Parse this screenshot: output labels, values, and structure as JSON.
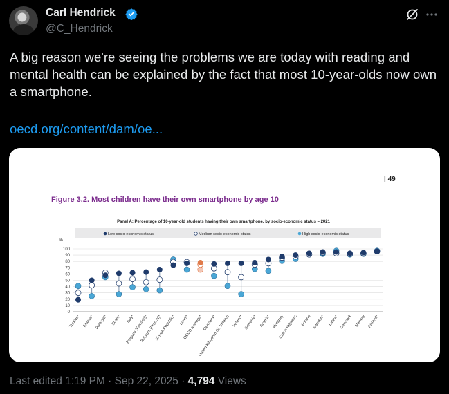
{
  "author": {
    "name": "Carl Hendrick",
    "handle": "@C_Hendrick"
  },
  "tweet": {
    "text": "A big reason we're seeing the problems we are today with reading and mental health can be explained by the fact that most 10-year-olds now own a smartphone.",
    "link": "oecd.org/content/dam/oe..."
  },
  "icons": {
    "verified": "verified-badge-icon",
    "grok": "grok-icon",
    "more": "more-options-icon"
  },
  "colors": {
    "accent": "#1d9bf0",
    "figure_title": "#7a2a8c",
    "low": "#1f3b6b",
    "medium": "#ffffff",
    "high": "#4aa7d6",
    "oecd_high": "#f3c6b5",
    "oecd_outline": "#e07a4a"
  },
  "figure": {
    "page_number": "| 49",
    "title": "Figure 3.2. Most children have their own smartphone by age 10",
    "panel_title": "Panel A: Percentage of 10-year-old students having their own smartphone, by socio-economic status – 2021",
    "legend": [
      "Low socio-economic status",
      "Medium socio-economic status",
      "High socio-economic status"
    ]
  },
  "chart_data": {
    "type": "scatter",
    "ylabel": "%",
    "ylim": [
      0,
      100
    ],
    "yticks": [
      0,
      10,
      20,
      30,
      40,
      50,
      60,
      70,
      80,
      90,
      100
    ],
    "legend_position": "top",
    "categories": [
      "Türkiye*",
      "France*",
      "Portugal*",
      "Spain*",
      "Italy*",
      "Belgium (Flemish)*",
      "Belgium (French)*",
      "Slovak Republic*",
      "Israel*",
      "OECD average*",
      "Germany*",
      "United Kingdom (N. Ireland)",
      "Ireland*",
      "Slovenia*",
      "Austria*",
      "Hungary",
      "Czech Republic",
      "Poland",
      "Sweden*",
      "Latvia*",
      "Denmark",
      "Norway",
      "Finland*"
    ],
    "series": [
      {
        "name": "Low socio-economic status",
        "values": [
          19,
          50,
          58,
          61,
          62,
          63,
          67,
          74,
          77,
          78,
          76,
          77,
          77,
          78,
          83,
          88,
          90,
          93,
          95,
          95,
          93,
          94,
          96
        ]
      },
      {
        "name": "Medium socio-economic status",
        "values": [
          30,
          42,
          62,
          45,
          52,
          47,
          51,
          79,
          79,
          75,
          69,
          63,
          55,
          75,
          77,
          86,
          88,
          91,
          94,
          93,
          92,
          93,
          96
        ]
      },
      {
        "name": "High socio-economic status",
        "values": [
          41,
          25,
          55,
          28,
          39,
          36,
          34,
          83,
          67,
          67,
          57,
          41,
          28,
          68,
          65,
          81,
          84,
          91,
          92,
          97,
          91,
          92,
          97
        ]
      }
    ]
  },
  "footer": {
    "edited": "Last edited 1:19 PM · Sep 22, 2025 · ",
    "views_count": "4,794",
    "views_label": " Views"
  }
}
